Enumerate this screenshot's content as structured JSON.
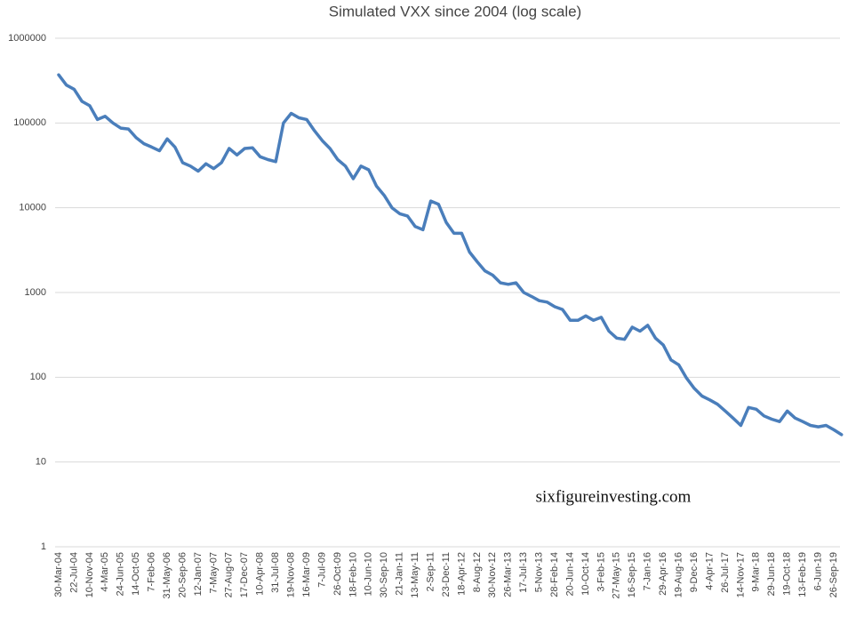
{
  "chart_data": {
    "type": "line",
    "title": "Simulated VXX since 2004 (log scale)",
    "annotation": "sixfigureinvesting.com",
    "log_scale": true,
    "grid": true,
    "color": "#4a7ebb",
    "ylim": [
      1,
      1000000
    ],
    "yticks": [
      1,
      10,
      100,
      1000,
      10000,
      100000,
      1000000
    ],
    "categories": [
      "30-Mar-04",
      null,
      "22-Jul-04",
      null,
      "10-Nov-04",
      null,
      "4-Mar-05",
      null,
      "24-Jun-05",
      null,
      "14-Oct-05",
      null,
      "7-Feb-06",
      null,
      "31-May-06",
      null,
      "20-Sep-06",
      null,
      "12-Jan-07",
      null,
      "7-May-07",
      null,
      "27-Aug-07",
      null,
      "17-Dec-07",
      null,
      "10-Apr-08",
      null,
      "31-Jul-08",
      null,
      "19-Nov-08",
      null,
      "16-Mar-09",
      null,
      "7-Jul-09",
      null,
      "26-Oct-09",
      null,
      "18-Feb-10",
      null,
      "10-Jun-10",
      null,
      "30-Sep-10",
      null,
      "21-Jan-11",
      null,
      "13-May-11",
      null,
      "2-Sep-11",
      null,
      "23-Dec-11",
      null,
      "18-Apr-12",
      null,
      "8-Aug-12",
      null,
      "30-Nov-12",
      null,
      "26-Mar-13",
      null,
      "17-Jul-13",
      null,
      "5-Nov-13",
      null,
      "28-Feb-14",
      null,
      "20-Jun-14",
      null,
      "10-Oct-14",
      null,
      "3-Feb-15",
      null,
      "27-May-15",
      null,
      "16-Sep-15",
      null,
      "7-Jan-16",
      null,
      "29-Apr-16",
      null,
      "19-Aug-16",
      null,
      "9-Dec-16",
      null,
      "4-Apr-17",
      null,
      "26-Jul-17",
      null,
      "14-Nov-17",
      null,
      "9-Mar-18",
      null,
      "29-Jun-18",
      null,
      "19-Oct-18",
      null,
      "13-Feb-19",
      null,
      "6-Jun-19",
      null,
      "26-Sep-19",
      null
    ],
    "values": [
      370000,
      280000,
      250000,
      180000,
      160000,
      110000,
      120000,
      100000,
      87000,
      85000,
      67000,
      57000,
      52000,
      47000,
      65000,
      52000,
      34000,
      31000,
      27000,
      33000,
      29000,
      34000,
      50000,
      42000,
      50000,
      51000,
      40000,
      37000,
      35000,
      100000,
      130000,
      115000,
      110000,
      81000,
      62000,
      50000,
      37000,
      31000,
      22000,
      31000,
      28000,
      18000,
      14000,
      10000,
      8500,
      8000,
      6000,
      5500,
      12000,
      11000,
      6700,
      5000,
      5000,
      3000,
      2300,
      1800,
      1600,
      1300,
      1250,
      1300,
      1000,
      900,
      800,
      770,
      680,
      630,
      470,
      470,
      530,
      470,
      510,
      350,
      290,
      280,
      390,
      350,
      410,
      290,
      240,
      160,
      140,
      98,
      74,
      60,
      54,
      48,
      40,
      33,
      27,
      44,
      42,
      35,
      32,
      30,
      40,
      33,
      30,
      27,
      26,
      27,
      24,
      21
    ]
  }
}
